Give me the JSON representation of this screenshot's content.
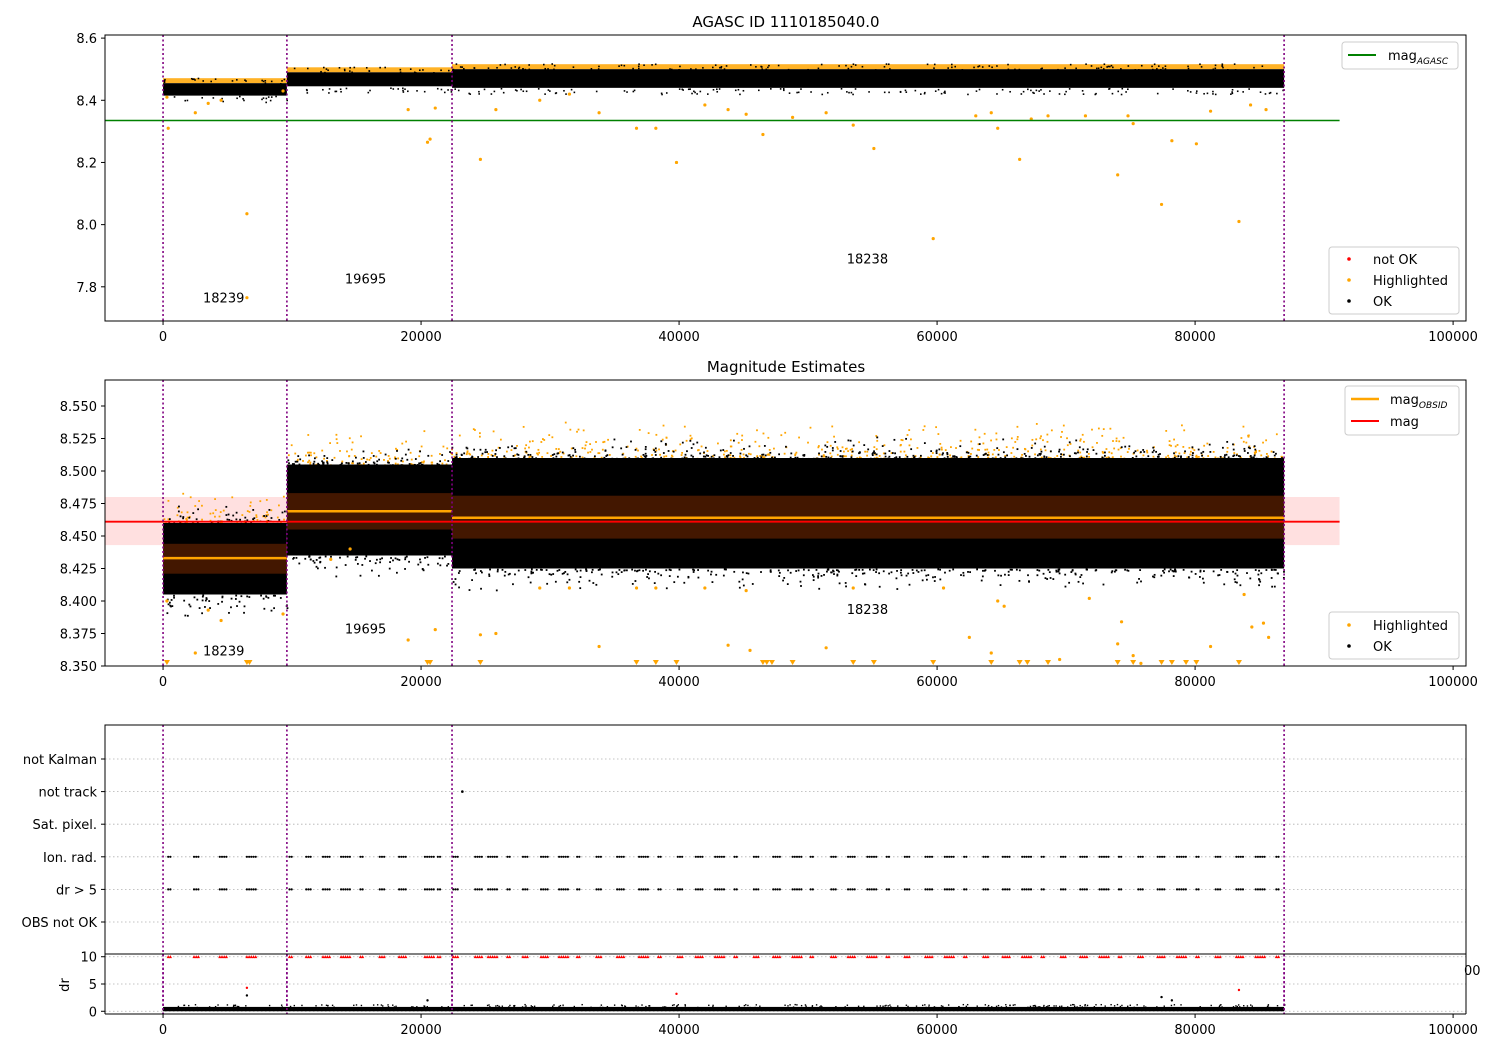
{
  "chart_data": [
    {
      "id": "top",
      "type": "scatter",
      "title": "AGASC ID 1110185040.0",
      "xlim": [
        -4500,
        101000
      ],
      "ylim": [
        7.69,
        8.61
      ],
      "xticks": [
        0,
        20000,
        40000,
        60000,
        80000,
        100000
      ],
      "xtick_labels": [
        "0",
        "20000",
        "40000",
        "60000",
        "80000",
        "100000"
      ],
      "yticks": [
        7.8,
        8.0,
        8.2,
        8.4,
        8.6
      ],
      "ytick_labels": [
        "7.8",
        "8.0",
        "8.2",
        "8.4",
        "8.6"
      ],
      "obs_boundaries": [
        0,
        9600,
        22400,
        86900
      ],
      "obs_labels": [
        {
          "text": "18239",
          "x": 4700,
          "y": 7.75
        },
        {
          "text": "19695",
          "x": 15700,
          "y": 7.81
        },
        {
          "text": "18238",
          "x": 54600,
          "y": 7.875
        }
      ],
      "reference_lines": [
        {
          "name": "mag_AGASC",
          "y": 8.335,
          "x_range": [
            -4500,
            91200
          ],
          "color": "#008000"
        }
      ],
      "series": [
        {
          "name": "OK",
          "color": "#000000",
          "bands": [
            {
              "x": [
                0,
                9600
              ],
              "y": [
                8.415,
                8.455
              ]
            },
            {
              "x": [
                9600,
                22400
              ],
              "y": [
                8.445,
                8.49
              ]
            },
            {
              "x": [
                22400,
                86900
              ],
              "y": [
                8.44,
                8.5
              ]
            }
          ]
        },
        {
          "name": "Highlighted",
          "color": "#FFA500",
          "points": [
            [
              300,
              8.41
            ],
            [
              400,
              8.31
            ],
            [
              2500,
              8.36
            ],
            [
              3500,
              8.39
            ],
            [
              4500,
              8.4
            ],
            [
              6500,
              8.035
            ],
            [
              6500,
              7.765
            ],
            [
              9300,
              8.43
            ],
            [
              19000,
              8.37
            ],
            [
              20500,
              8.265
            ],
            [
              20700,
              8.275
            ],
            [
              21100,
              8.375
            ],
            [
              24600,
              8.21
            ],
            [
              25800,
              8.37
            ],
            [
              29200,
              8.4
            ],
            [
              31500,
              8.42
            ],
            [
              33800,
              8.36
            ],
            [
              36700,
              8.31
            ],
            [
              38200,
              8.31
            ],
            [
              39800,
              8.2
            ],
            [
              42000,
              8.385
            ],
            [
              43800,
              8.37
            ],
            [
              45200,
              8.355
            ],
            [
              46500,
              8.29
            ],
            [
              48800,
              8.345
            ],
            [
              51400,
              8.36
            ],
            [
              53500,
              8.32
            ],
            [
              55100,
              8.245
            ],
            [
              59700,
              7.955
            ],
            [
              63000,
              8.35
            ],
            [
              64200,
              8.36
            ],
            [
              64700,
              8.31
            ],
            [
              66400,
              8.21
            ],
            [
              67300,
              8.34
            ],
            [
              68600,
              8.35
            ],
            [
              71500,
              8.35
            ],
            [
              74000,
              8.16
            ],
            [
              74800,
              8.35
            ],
            [
              75200,
              8.325
            ],
            [
              77400,
              8.065
            ],
            [
              78200,
              8.27
            ],
            [
              80100,
              8.26
            ],
            [
              81200,
              8.365
            ],
            [
              83400,
              8.01
            ],
            [
              84300,
              8.385
            ],
            [
              85500,
              8.37
            ]
          ]
        },
        {
          "name": "not OK",
          "color": "#FF0000",
          "points": []
        }
      ],
      "legends": [
        {
          "position": "top-right",
          "items": [
            {
              "label": "mag",
              "sub": "AGASC",
              "kind": "line",
              "color": "#008000"
            }
          ]
        },
        {
          "position": "bottom-right",
          "items": [
            {
              "label": "not OK",
              "kind": "dot",
              "color": "#FF0000"
            },
            {
              "label": "Highlighted",
              "kind": "dot",
              "color": "#FFA500"
            },
            {
              "label": "OK",
              "kind": "dot",
              "color": "#000000"
            }
          ]
        }
      ]
    },
    {
      "id": "middle",
      "type": "scatter",
      "title": "Magnitude Estimates",
      "xlim": [
        -4500,
        101000
      ],
      "ylim": [
        8.35,
        8.57
      ],
      "xticks": [
        0,
        20000,
        40000,
        60000,
        80000,
        100000
      ],
      "xtick_labels": [
        "0",
        "20000",
        "40000",
        "60000",
        "80000",
        "100000"
      ],
      "yticks": [
        8.35,
        8.375,
        8.4,
        8.425,
        8.45,
        8.475,
        8.5,
        8.525,
        8.55
      ],
      "ytick_labels": [
        "8.350",
        "8.375",
        "8.400",
        "8.425",
        "8.450",
        "8.475",
        "8.500",
        "8.525",
        "8.550"
      ],
      "obs_boundaries": [
        0,
        9600,
        22400,
        86900
      ],
      "obs_labels": [
        {
          "text": "18239",
          "x": 4700,
          "y": 8.358
        },
        {
          "text": "19695",
          "x": 15700,
          "y": 8.375
        },
        {
          "text": "18238",
          "x": 54600,
          "y": 8.39
        }
      ],
      "mag_band": {
        "y": [
          8.443,
          8.48
        ],
        "x_range": [
          -4500,
          91200
        ]
      },
      "mag": {
        "y": 8.461,
        "x_range": [
          -4500,
          91200
        ],
        "color": "#FF0000"
      },
      "mag_obsid": [
        {
          "x": [
            0,
            9600
          ],
          "y": 8.433,
          "band": [
            8.421,
            8.444
          ]
        },
        {
          "x": [
            9600,
            22400
          ],
          "y": 8.469,
          "band": [
            8.455,
            8.483
          ]
        },
        {
          "x": [
            22400,
            86900
          ],
          "y": 8.464,
          "band": [
            8.448,
            8.481
          ]
        }
      ],
      "series": [
        {
          "name": "OK",
          "color": "#000000",
          "bands": [
            {
              "x": [
                0,
                9600
              ],
              "y": [
                8.405,
                8.46
              ]
            },
            {
              "x": [
                9600,
                22400
              ],
              "y": [
                8.435,
                8.505
              ]
            },
            {
              "x": [
                22400,
                86900
              ],
              "y": [
                8.425,
                8.51
              ]
            }
          ]
        },
        {
          "name": "Highlighted",
          "color": "#FFA500",
          "points": [
            [
              300,
              8.4
            ],
            [
              2500,
              8.36
            ],
            [
              3500,
              8.393
            ],
            [
              4500,
              8.385
            ],
            [
              9300,
              8.39
            ],
            [
              13000,
              8.432
            ],
            [
              14500,
              8.44
            ],
            [
              19000,
              8.37
            ],
            [
              21100,
              8.378
            ],
            [
              24600,
              8.374
            ],
            [
              25800,
              8.375
            ],
            [
              29200,
              8.41
            ],
            [
              31500,
              8.41
            ],
            [
              33800,
              8.365
            ],
            [
              36700,
              8.41
            ],
            [
              38200,
              8.41
            ],
            [
              42000,
              8.41
            ],
            [
              43800,
              8.366
            ],
            [
              45200,
              8.408
            ],
            [
              45500,
              8.362
            ],
            [
              51400,
              8.364
            ],
            [
              53500,
              8.41
            ],
            [
              60500,
              8.41
            ],
            [
              62500,
              8.372
            ],
            [
              64200,
              8.36
            ],
            [
              64700,
              8.4
            ],
            [
              65200,
              8.396
            ],
            [
              69500,
              8.355
            ],
            [
              71800,
              8.402
            ],
            [
              74000,
              8.367
            ],
            [
              74300,
              8.384
            ],
            [
              75200,
              8.358
            ],
            [
              75800,
              8.352
            ],
            [
              81200,
              8.365
            ],
            [
              83800,
              8.405
            ],
            [
              84400,
              8.38
            ],
            [
              85300,
              8.383
            ],
            [
              85700,
              8.372
            ]
          ]
        }
      ],
      "floor_markers_x": [
        300,
        6500,
        6700,
        20500,
        20700,
        24600,
        36700,
        38200,
        39800,
        46500,
        46800,
        47200,
        48800,
        53500,
        55100,
        59700,
        64200,
        66400,
        67000,
        68600,
        74000,
        75200,
        77400,
        78200,
        79300,
        80100,
        83400
      ],
      "legends": [
        {
          "position": "top-right",
          "items": [
            {
              "label": "mag",
              "sub": "OBSID",
              "kind": "line",
              "color": "#FFA500"
            },
            {
              "label": "mag",
              "kind": "line",
              "color": "#FF0000"
            }
          ]
        },
        {
          "position": "bottom-right",
          "items": [
            {
              "label": "Highlighted",
              "kind": "dot",
              "color": "#FFA500"
            },
            {
              "label": "OK",
              "kind": "dot",
              "color": "#000000"
            }
          ]
        }
      ]
    },
    {
      "id": "flags",
      "type": "scatter",
      "xlim": [
        -4500,
        101000
      ],
      "categories": [
        "not Kalman",
        "not track",
        "Sat. pixel.",
        "Ion. rad.",
        "dr > 5",
        "OBS not OK"
      ],
      "obs_boundaries": [
        0,
        9600,
        22400,
        86900
      ],
      "not_track_x": [
        23200
      ],
      "flag_x": [
        400,
        2400,
        4400,
        6500,
        9800,
        11100,
        12400,
        13800,
        15300,
        16800,
        18300,
        20300,
        21300,
        22500,
        24200,
        25200,
        26700,
        27900,
        29300,
        30700,
        32100,
        33600,
        35200,
        36900,
        38400,
        39900,
        41300,
        42800,
        44300,
        45800,
        47300,
        48800,
        50200,
        51800,
        53100,
        54600,
        56100,
        57500,
        59100,
        60600,
        62100,
        63600,
        65100,
        66600,
        68100,
        69600,
        71100,
        72600,
        74100,
        75600,
        77100,
        78600,
        80100,
        81600,
        83200,
        84700,
        86300
      ]
    },
    {
      "id": "dr",
      "type": "scatter",
      "xlim": [
        -4500,
        101000
      ],
      "ylim": [
        -0.5,
        10.5
      ],
      "ylabel": "dr",
      "xticks": [
        0,
        20000,
        40000,
        60000,
        80000,
        100000
      ],
      "xtick_labels": [
        "0",
        "20000",
        "40000",
        "60000",
        "80000",
        "100000"
      ],
      "yticks": [
        0,
        5,
        10
      ],
      "ytick_labels": [
        "0",
        "5",
        "10"
      ],
      "obs_boundaries": [
        0,
        9600,
        22400,
        86900
      ],
      "band": {
        "y": [
          0,
          0.8
        ]
      },
      "clipped_y": 10,
      "outliers": [
        [
          6500,
          4.3
        ],
        [
          6500,
          2.9
        ],
        [
          20500,
          2
        ],
        [
          39800,
          3.2
        ],
        [
          77400,
          2.6
        ],
        [
          78200,
          2
        ],
        [
          83400,
          3.9
        ]
      ],
      "right_edge_text": "00"
    }
  ]
}
